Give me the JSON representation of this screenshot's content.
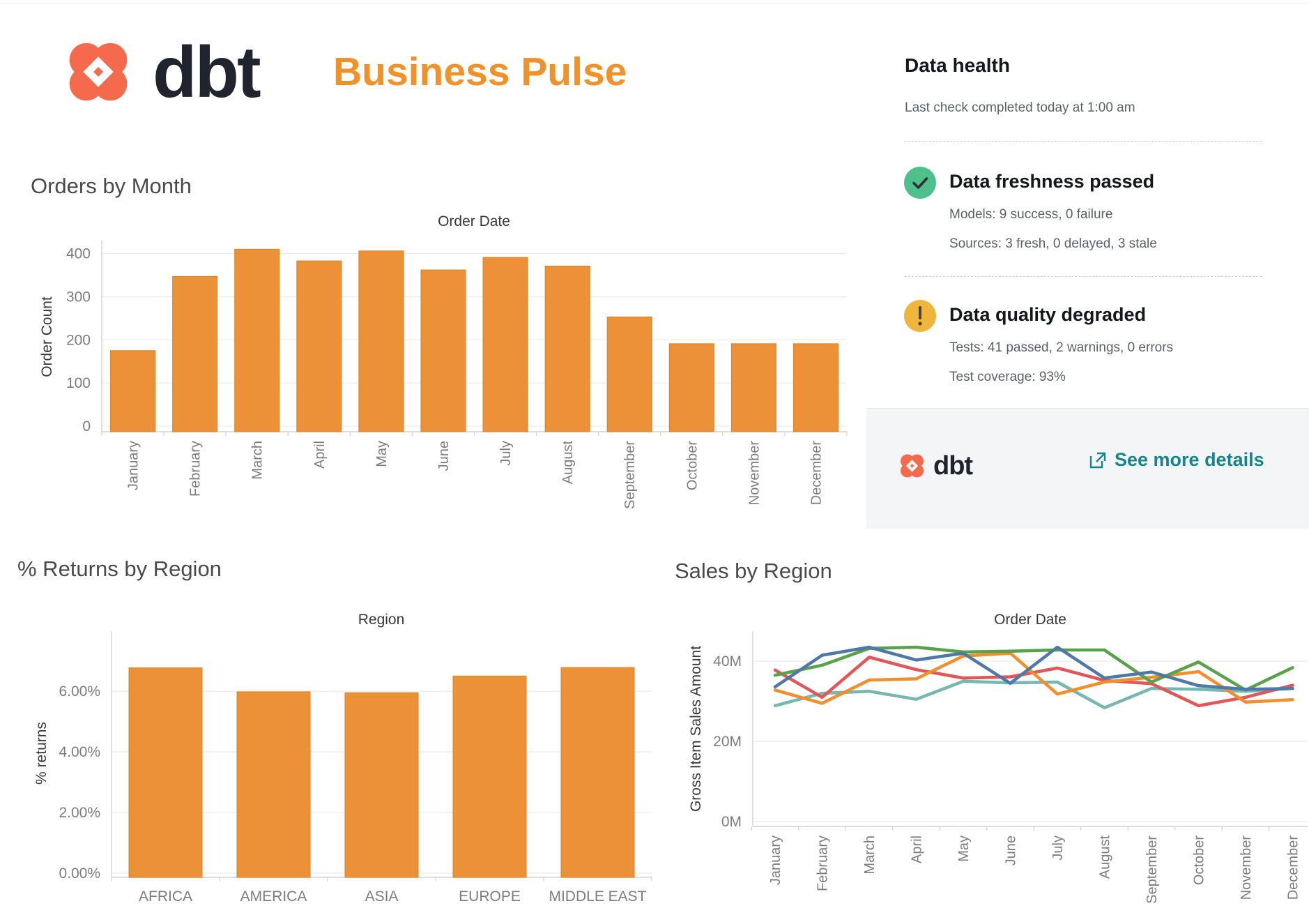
{
  "header": {
    "logo_text": "dbt",
    "title": "Business Pulse"
  },
  "data_health": {
    "title": "Data health",
    "subtitle": "Last check completed today at 1:00 am",
    "statuses": [
      {
        "title": "Data freshness passed",
        "lines": [
          "Models: 9 success, 0 failure",
          "Sources: 3 fresh, 0 delayed, 3 stale"
        ],
        "icon": "check-icon",
        "color": "#4fc08c"
      },
      {
        "title": "Data quality degraded",
        "lines": [
          "Tests: 41 passed, 2 warnings, 0 errors",
          "Test coverage: 93%"
        ],
        "icon": "warning-icon",
        "color": "#f0b53c"
      }
    ],
    "footer": {
      "logo_text": "dbt",
      "link_label": "See more details"
    }
  },
  "colors": {
    "brand_coral": "#f5694d",
    "brand_navy": "#20242e",
    "title_orange": "#f0922b",
    "link_teal": "#17858e",
    "ok_green": "#4fc08c",
    "warn_yellow": "#f0b53c",
    "bar_orange": "#ec9138"
  },
  "chart_data": [
    {
      "id": "orders_by_month",
      "type": "bar",
      "title": "Orders by Month",
      "chart_title": "Order Date",
      "xlabel": "",
      "ylabel": "Order Count",
      "categories": [
        "January",
        "February",
        "March",
        "April",
        "May",
        "June",
        "July",
        "August",
        "September",
        "October",
        "November",
        "December"
      ],
      "values": [
        175,
        347,
        410,
        383,
        406,
        362,
        391,
        371,
        253,
        191,
        191,
        191
      ],
      "yticks": [
        0,
        100,
        200,
        300,
        400
      ],
      "ytick_labels": [
        "0",
        "100",
        "200",
        "300",
        "400"
      ],
      "ylim": [
        0,
        430
      ],
      "grid": true,
      "legend": "none",
      "bar_color": "#ec9138"
    },
    {
      "id": "returns_by_region",
      "type": "bar",
      "title": "% Returns by Region",
      "chart_title": "Region",
      "xlabel": "",
      "ylabel": "% returns",
      "categories": [
        "AFRICA",
        "AMERICA",
        "ASIA",
        "EUROPE",
        "MIDDLE EAST"
      ],
      "values": [
        6.77,
        5.98,
        5.95,
        6.5,
        6.78
      ],
      "yticks": [
        0,
        2,
        4,
        6
      ],
      "ytick_labels": [
        "0.00%",
        "2.00%",
        "4.00%",
        "6.00%"
      ],
      "ylim": [
        0,
        7.98
      ],
      "grid": true,
      "legend": "none",
      "bar_color": "#ec9138"
    },
    {
      "id": "sales_by_region",
      "type": "line",
      "title": "Sales by Region",
      "chart_title": "Order Date",
      "xlabel": "",
      "ylabel": "Gross Item Sales Amount",
      "categories": [
        "January",
        "February",
        "March",
        "April",
        "May",
        "June",
        "July",
        "August",
        "September",
        "October",
        "November",
        "December"
      ],
      "series": [
        {
          "name": "teal",
          "color": "#76b7b2",
          "values": [
            28.9,
            32.0,
            32.5,
            30.5,
            35.0,
            34.6,
            34.8,
            28.4,
            33.2,
            33.0,
            32.5,
            33.2
          ]
        },
        {
          "name": "red",
          "color": "#e15759",
          "values": [
            37.8,
            31.0,
            41.0,
            37.9,
            35.8,
            36.1,
            38.3,
            35.2,
            34.4,
            28.9,
            31.0,
            34.0
          ]
        },
        {
          "name": "orange",
          "color": "#f28e2b",
          "values": [
            32.8,
            29.5,
            35.3,
            35.6,
            41.3,
            42.0,
            31.8,
            34.8,
            36.0,
            37.4,
            29.8,
            30.4
          ]
        },
        {
          "name": "green",
          "color": "#59a14b",
          "values": [
            36.5,
            39.0,
            43.2,
            43.5,
            42.3,
            42.5,
            42.8,
            42.8,
            34.8,
            39.8,
            32.8,
            38.4
          ]
        },
        {
          "name": "blue",
          "color": "#4e79a7",
          "values": [
            33.6,
            41.5,
            43.5,
            40.3,
            42.0,
            34.5,
            43.5,
            35.8,
            37.3,
            33.9,
            33.0,
            33.2
          ]
        }
      ],
      "yticks": [
        0,
        20,
        40
      ],
      "ytick_labels": [
        "0M",
        "20M",
        "40M"
      ],
      "ylim": [
        0,
        47.5
      ],
      "grid": true,
      "legend": "none"
    }
  ]
}
